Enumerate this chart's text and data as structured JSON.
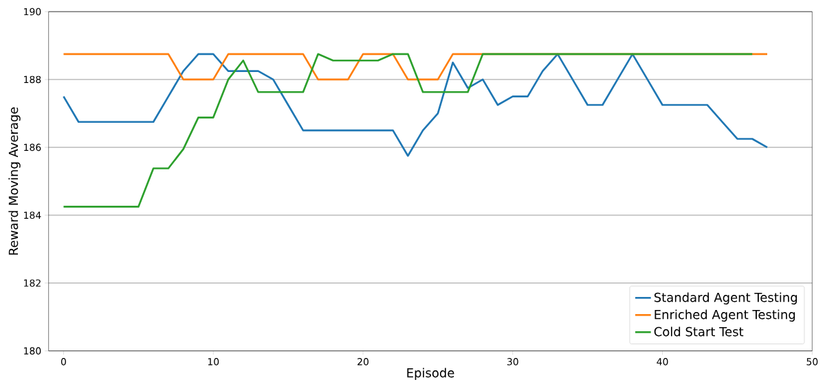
{
  "chart_data": {
    "type": "line",
    "xlabel": "Episode",
    "ylabel": "Reward Moving Average",
    "xlim": [
      -1,
      50
    ],
    "ylim": [
      180,
      190
    ],
    "xticks": [
      0,
      10,
      20,
      30,
      40,
      50
    ],
    "yticks": [
      180,
      182,
      184,
      186,
      188,
      190
    ],
    "grid": "y",
    "legend": "bottom right",
    "line_style": "solid",
    "marker": "none",
    "series": [
      {
        "name": "Standard Agent Testing",
        "color": "#1f77b4",
        "x": [
          0,
          1,
          2,
          3,
          4,
          5,
          6,
          7,
          8,
          9,
          10,
          11,
          12,
          13,
          14,
          15,
          16,
          17,
          18,
          19,
          20,
          21,
          22,
          23,
          24,
          25,
          26,
          27,
          28,
          29,
          30,
          31,
          32,
          33,
          34,
          35,
          36,
          37,
          38,
          39,
          40,
          41,
          42,
          43,
          44,
          45,
          46,
          47
        ],
        "values": [
          187.5,
          186.75,
          186.75,
          186.75,
          186.75,
          186.75,
          186.75,
          187.5,
          188.25,
          188.75,
          188.75,
          188.25,
          188.25,
          188.25,
          188.0,
          187.25,
          186.5,
          186.5,
          186.5,
          186.5,
          186.5,
          186.5,
          186.5,
          185.75,
          186.5,
          187.0,
          188.5,
          187.75,
          188.0,
          187.25,
          187.5,
          187.5,
          188.25,
          188.75,
          188.0,
          187.25,
          187.25,
          188.0,
          188.75,
          188.0,
          187.25,
          187.25,
          187.25,
          187.25,
          186.75,
          186.25,
          186.25,
          186.0
        ]
      },
      {
        "name": "Enriched Agent Testing",
        "color": "#ff7f0e",
        "x": [
          0,
          1,
          2,
          3,
          4,
          5,
          6,
          7,
          8,
          9,
          10,
          11,
          12,
          13,
          14,
          15,
          16,
          17,
          18,
          19,
          20,
          21,
          22,
          23,
          24,
          25,
          26,
          27,
          28,
          29,
          30,
          31,
          32,
          33,
          34,
          35,
          36,
          37,
          38,
          39,
          40,
          41,
          42,
          43,
          44,
          45,
          46,
          47
        ],
        "values": [
          188.75,
          188.75,
          188.75,
          188.75,
          188.75,
          188.75,
          188.75,
          188.75,
          188.0,
          188.0,
          188.0,
          188.75,
          188.75,
          188.75,
          188.75,
          188.75,
          188.75,
          188.0,
          188.0,
          188.0,
          188.75,
          188.75,
          188.75,
          188.0,
          188.0,
          188.0,
          188.75,
          188.75,
          188.75,
          188.75,
          188.75,
          188.75,
          188.75,
          188.75,
          188.75,
          188.75,
          188.75,
          188.75,
          188.75,
          188.75,
          188.75,
          188.75,
          188.75,
          188.75,
          188.75,
          188.75,
          188.75,
          188.75
        ]
      },
      {
        "name": "Cold Start Test",
        "color": "#2ca02c",
        "x": [
          0,
          1,
          2,
          3,
          4,
          5,
          6,
          7,
          8,
          9,
          10,
          11,
          12,
          13,
          14,
          15,
          16,
          17,
          18,
          19,
          20,
          21,
          22,
          23,
          24,
          25,
          26,
          27,
          28,
          29,
          30,
          31,
          32,
          33,
          34,
          35,
          36,
          37,
          38,
          39,
          40,
          41,
          42,
          43,
          44,
          45,
          46
        ],
        "values": [
          184.25,
          184.25,
          184.25,
          184.25,
          184.25,
          184.25,
          185.38,
          185.38,
          185.95,
          186.88,
          186.88,
          188.0,
          188.56,
          187.63,
          187.63,
          187.63,
          187.63,
          188.75,
          188.56,
          188.56,
          188.56,
          188.56,
          188.75,
          188.75,
          187.63,
          187.63,
          187.63,
          187.63,
          188.75,
          188.75,
          188.75,
          188.75,
          188.75,
          188.75,
          188.75,
          188.75,
          188.75,
          188.75,
          188.75,
          188.75,
          188.75,
          188.75,
          188.75,
          188.75,
          188.75,
          188.75,
          188.75
        ]
      }
    ]
  }
}
